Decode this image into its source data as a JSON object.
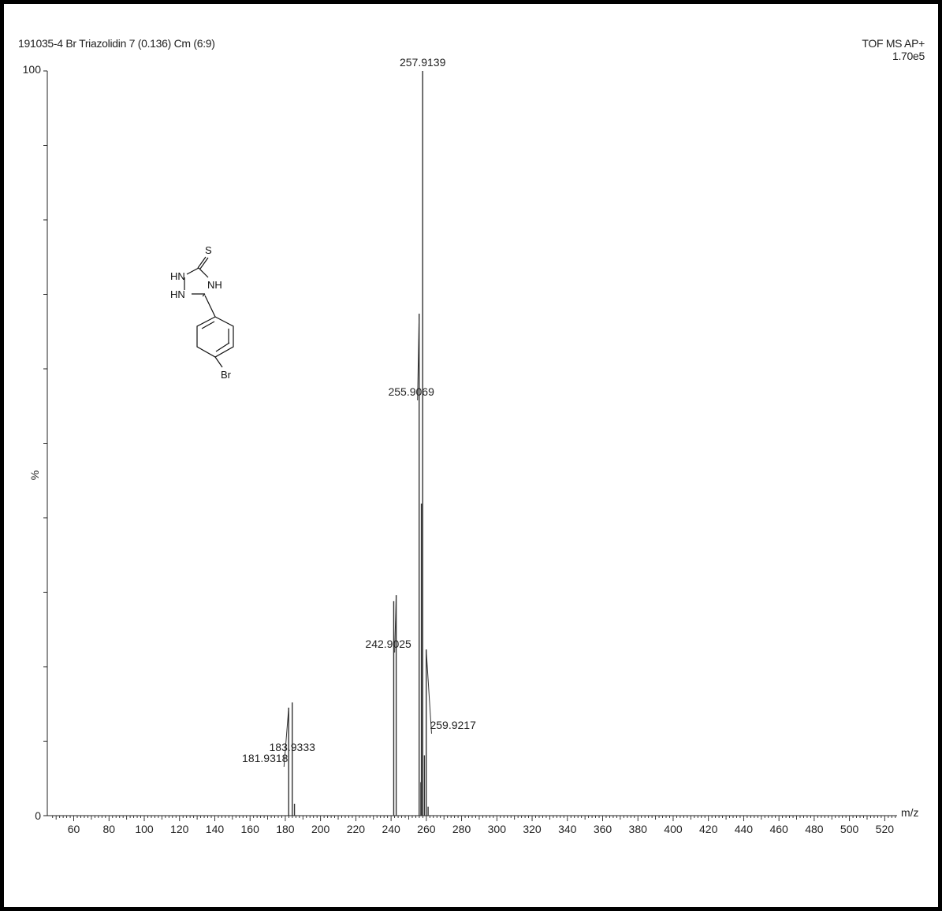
{
  "chart_data": {
    "type": "bar",
    "title": "191035-4 Br Triazolidin 7 (0.136) Cm (6:9)",
    "instrument": "TOF MS AP+",
    "base_peak_intensity": "1.70e5",
    "xlabel": "m/z",
    "ylabel": "%",
    "xlim": [
      45,
      527
    ],
    "ylim": [
      0,
      100
    ],
    "x_ticks": [
      "60",
      "80",
      "100",
      "120",
      "140",
      "160",
      "180",
      "200",
      "220",
      "240",
      "260",
      "280",
      "300",
      "320",
      "340",
      "360",
      "380",
      "400",
      "420",
      "440",
      "460",
      "480",
      "500",
      "520"
    ],
    "y_tick_labels": {
      "top": "100",
      "bottom": "0",
      "mid": "%"
    },
    "peaks": [
      {
        "mz": 181.9318,
        "intensity": 14.5,
        "label": "181.9318"
      },
      {
        "mz": 183.9333,
        "intensity": 15.2,
        "label": "183.9333"
      },
      {
        "mz": 185.2,
        "intensity": 1.6,
        "label": ""
      },
      {
        "mz": 241.5,
        "intensity": 28.8,
        "label": ""
      },
      {
        "mz": 242.9025,
        "intensity": 29.6,
        "label": "242.9025"
      },
      {
        "mz": 255.9069,
        "intensity": 67.4,
        "label": "255.9069"
      },
      {
        "mz": 256.9,
        "intensity": 4.5,
        "label": ""
      },
      {
        "mz": 257.2,
        "intensity": 41.9,
        "label": ""
      },
      {
        "mz": 257.9139,
        "intensity": 100,
        "label": "257.9139"
      },
      {
        "mz": 258.9,
        "intensity": 8.1,
        "label": ""
      },
      {
        "mz": 259.9217,
        "intensity": 22.3,
        "label": "259.9217"
      },
      {
        "mz": 261.0,
        "intensity": 1.2,
        "label": ""
      }
    ]
  },
  "structure": {
    "atom_labels": {
      "sulfur": "S",
      "nh_top": "HN",
      "nh_bottom": "HN",
      "nh_right": "NH",
      "bromine": "Br"
    }
  },
  "colors": {
    "axis": "#222222",
    "peak": "#333333",
    "frame": "#000000"
  }
}
